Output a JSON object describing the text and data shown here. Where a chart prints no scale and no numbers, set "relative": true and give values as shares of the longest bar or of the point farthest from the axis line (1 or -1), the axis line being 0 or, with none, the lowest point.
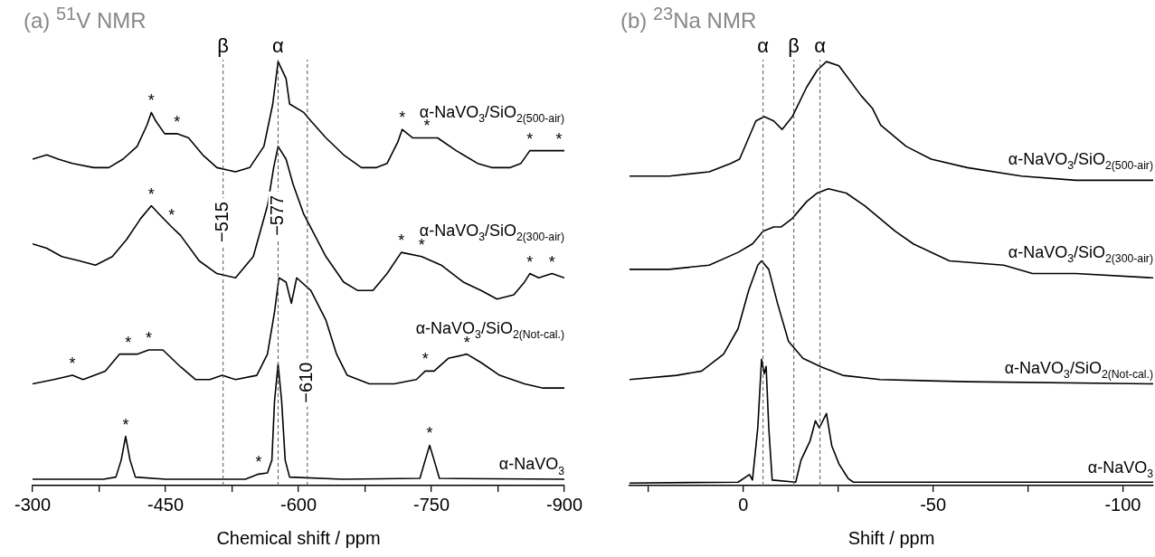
{
  "chart_data": [
    {
      "type": "line",
      "title": "(a) $^{51}$V NMR",
      "xlabel": "Chemical shift / ppm",
      "relative": true,
      "legend": false,
      "grid": false,
      "xlim": [
        -300,
        -900
      ],
      "xticks": [
        -300,
        {
          "value": -375,
          "label": null
        },
        -450,
        {
          "value": -525,
          "label": null
        },
        -600,
        {
          "value": -675,
          "label": null
        },
        -750,
        {
          "value": -825,
          "label": null
        },
        -900
      ],
      "series": [
        {
          "name": "α-NaVO$_{3}$/SiO$_{2(500-air)}$",
          "color": "#000000",
          "x": [
            -300,
            -316,
            -329,
            -345,
            -369,
            -386,
            -402,
            -418,
            -429,
            -434,
            -439,
            -449,
            -463,
            -476,
            -492,
            -508,
            -529,
            -545,
            -561,
            -571,
            -577,
            -586,
            -590,
            -606,
            -614,
            -631,
            -651,
            -671,
            -688,
            -700,
            -712,
            -717,
            -729,
            -745,
            -757,
            -778,
            -802,
            -818,
            -839,
            -851,
            -861,
            -871,
            -884,
            -894,
            -900
          ],
          "values": [
            0.77,
            0.78,
            0.77,
            0.76,
            0.75,
            0.75,
            0.77,
            0.8,
            0.85,
            0.88,
            0.86,
            0.83,
            0.83,
            0.82,
            0.78,
            0.75,
            0.74,
            0.75,
            0.8,
            0.9,
            1,
            0.96,
            0.9,
            0.88,
            0.86,
            0.82,
            0.78,
            0.75,
            0.75,
            0.76,
            0.81,
            0.84,
            0.82,
            0.82,
            0.82,
            0.79,
            0.76,
            0.75,
            0.75,
            0.76,
            0.79,
            0.79,
            0.79,
            0.79,
            0.79
          ]
        },
        {
          "name": "α-NaVO$_{3}$/SiO$_{2(300-air)}$",
          "color": "#000000",
          "x": [
            -300,
            -316,
            -333,
            -353,
            -371,
            -390,
            -406,
            -422,
            -434,
            -443,
            -457,
            -467,
            -488,
            -508,
            -529,
            -549,
            -565,
            -572,
            -577,
            -586,
            -594,
            -606,
            -631,
            -651,
            -667,
            -684,
            -700,
            -716,
            -739,
            -761,
            -786,
            -806,
            -824,
            -843,
            -855,
            -861,
            -871,
            -886,
            -900
          ],
          "values": [
            0.57,
            0.56,
            0.54,
            0.53,
            0.52,
            0.54,
            0.58,
            0.63,
            0.66,
            0.64,
            0.61,
            0.59,
            0.53,
            0.5,
            0.49,
            0.54,
            0.66,
            0.75,
            0.8,
            0.77,
            0.71,
            0.64,
            0.54,
            0.48,
            0.46,
            0.46,
            0.5,
            0.55,
            0.54,
            0.52,
            0.48,
            0.46,
            0.44,
            0.45,
            0.48,
            0.5,
            0.49,
            0.5,
            0.49
          ]
        },
        {
          "name": "α-NaVO$_{3}$/SiO$_{2(Not-cal.)}$",
          "color": "#000000",
          "x": [
            -300,
            -324,
            -345,
            -357,
            -382,
            -398,
            -408,
            -418,
            -431,
            -447,
            -467,
            -484,
            -500,
            -514,
            -529,
            -553,
            -565,
            -573,
            -578,
            -586,
            -592,
            -598,
            -614,
            -631,
            -643,
            -655,
            -680,
            -708,
            -733,
            -743,
            -753,
            -769,
            -790,
            -806,
            -827,
            -855,
            -876,
            -900
          ],
          "values": [
            0.24,
            0.25,
            0.26,
            0.25,
            0.27,
            0.31,
            0.31,
            0.31,
            0.32,
            0.32,
            0.28,
            0.25,
            0.25,
            0.26,
            0.25,
            0.26,
            0.31,
            0.41,
            0.49,
            0.48,
            0.43,
            0.49,
            0.46,
            0.39,
            0.31,
            0.26,
            0.24,
            0.24,
            0.25,
            0.27,
            0.27,
            0.3,
            0.31,
            0.29,
            0.26,
            0.24,
            0.23,
            0.23
          ]
        },
        {
          "name": "α-NaVO$_{3}$",
          "color": "#000000",
          "x": [
            -300,
            -380,
            -394,
            -400,
            -405,
            -410,
            -416,
            -450,
            -540,
            -555,
            -565,
            -570,
            -573,
            -577,
            -581,
            -585,
            -590,
            -650,
            -737,
            -743,
            -748,
            -753,
            -759,
            -900
          ],
          "values": [
            0.015,
            0.015,
            0.02,
            0.06,
            0.116,
            0.06,
            0.02,
            0.015,
            0.015,
            0.027,
            0.03,
            0.06,
            0.2,
            0.286,
            0.2,
            0.06,
            0.02,
            0.015,
            0.017,
            0.06,
            0.095,
            0.06,
            0.017,
            0.015
          ]
        }
      ],
      "ref_lines": [
        {
          "axis": "x",
          "value": -515,
          "label": "−515",
          "color": "#555555",
          "line_style": "dashed"
        },
        {
          "axis": "x",
          "value": -577,
          "label": "−577",
          "color": "#555555",
          "line_style": "dashed"
        },
        {
          "axis": "x",
          "value": -610,
          "label": "−610",
          "color": "#555555",
          "line_style": "dashed"
        }
      ],
      "annotations": [
        "β",
        "α",
        {
          "text": "*",
          "x": -434,
          "y": 0.88
        },
        {
          "text": "*",
          "x": -463,
          "y": 0.83
        },
        {
          "text": "*",
          "x": -717,
          "y": 0.84
        },
        {
          "text": "*",
          "x": -745,
          "y": 0.82
        },
        {
          "text": "*",
          "x": -861,
          "y": 0.79
        },
        {
          "text": "*",
          "x": -894,
          "y": 0.79
        },
        {
          "text": "*",
          "x": -434,
          "y": 0.66
        },
        {
          "text": "*",
          "x": -457,
          "y": 0.61
        },
        {
          "text": "*",
          "x": -716,
          "y": 0.55
        },
        {
          "text": "*",
          "x": -739,
          "y": 0.54
        },
        {
          "text": "*",
          "x": -861,
          "y": 0.5
        },
        {
          "text": "*",
          "x": -886,
          "y": 0.5
        },
        {
          "text": "*",
          "x": -345,
          "y": 0.26
        },
        {
          "text": "*",
          "x": -408,
          "y": 0.31
        },
        {
          "text": "*",
          "x": -431,
          "y": 0.32
        },
        {
          "text": "*",
          "x": -743,
          "y": 0.27
        },
        {
          "text": "*",
          "x": -790,
          "y": 0.31
        },
        {
          "text": "*",
          "x": -405,
          "y": 0.116
        },
        {
          "text": "*",
          "x": -555,
          "y": 0.027
        },
        {
          "text": "*",
          "x": -748,
          "y": 0.095
        }
      ]
    },
    {
      "type": "line",
      "title": "(b) $^{23}$Na NMR",
      "xlabel": "Shift / ppm",
      "relative": true,
      "legend": false,
      "grid": false,
      "xlim": [
        30,
        -108
      ],
      "xticks": [
        {
          "value": 25,
          "label": null
        },
        0,
        {
          "value": -25,
          "label": null
        },
        -50,
        {
          "value": -75,
          "label": null
        },
        -100
      ],
      "series": [
        {
          "name": "α-NaVO$_{3}$/SiO$_{2(500-air)}$",
          "color": "#000000",
          "x": [
            30,
            19.5,
            9,
            3.3,
            1,
            -1.4,
            -3.3,
            -5.5,
            -8,
            -10.2,
            -12.9,
            -16.7,
            -19.5,
            -21.9,
            -25.2,
            -31,
            -34,
            -36.2,
            -42.9,
            -49.5,
            -59,
            -73.3,
            -87.6,
            -108
          ],
          "values": [
            0.73,
            0.73,
            0.74,
            0.76,
            0.77,
            0.82,
            0.86,
            0.87,
            0.86,
            0.84,
            0.87,
            0.94,
            0.98,
            1,
            0.99,
            0.92,
            0.89,
            0.85,
            0.8,
            0.77,
            0.75,
            0.73,
            0.72,
            0.72
          ]
        },
        {
          "name": "α-NaVO$_{3}$/SiO$_{2(300-air)}$",
          "color": "#000000",
          "x": [
            30,
            19.5,
            9,
            1.4,
            -2.4,
            -5.2,
            -8,
            -10,
            -12.9,
            -16.7,
            -19.5,
            -22.4,
            -27.1,
            -32,
            -40,
            -44.8,
            -54.3,
            -68.6,
            -76.2,
            -87.6,
            -108
          ],
          "values": [
            0.51,
            0.51,
            0.52,
            0.55,
            0.57,
            0.6,
            0.61,
            0.61,
            0.63,
            0.67,
            0.69,
            0.7,
            0.69,
            0.66,
            0.6,
            0.57,
            0.53,
            0.52,
            0.5,
            0.5,
            0.49
          ]
        },
        {
          "name": "α-NaVO$_{3}$/SiO$_{2(Not-cal.)}$",
          "color": "#000000",
          "x": [
            30,
            17.6,
            11,
            5.2,
            1.4,
            -1.4,
            -3.8,
            -4.8,
            -6.7,
            -9,
            -11.9,
            -15.7,
            -20.5,
            -26.2,
            -36,
            -59,
            -108
          ],
          "values": [
            0.25,
            0.26,
            0.27,
            0.31,
            0.37,
            0.46,
            0.52,
            0.53,
            0.51,
            0.43,
            0.34,
            0.3,
            0.28,
            0.26,
            0.25,
            0.245,
            0.24
          ]
        },
        {
          "name": "α-NaVO$_{3}$",
          "color": "#000000",
          "x": [
            30,
            1.4,
            -1.6,
            -2.4,
            -3.8,
            -4.8,
            -5.5,
            -6,
            -6.7,
            -7.6,
            -13.8,
            -15.2,
            -17.6,
            -19,
            -20,
            -21.9,
            -23.3,
            -25.2,
            -27.6,
            -29,
            -108
          ],
          "values": [
            0.006,
            0.008,
            0.026,
            0.013,
            0.136,
            0.298,
            0.264,
            0.281,
            0.136,
            0.013,
            0.008,
            0.06,
            0.106,
            0.153,
            0.136,
            0.17,
            0.094,
            0.051,
            0.017,
            0.008,
            0.008
          ]
        }
      ],
      "ref_lines": [
        {
          "axis": "x",
          "value": -5.2,
          "color": "#555555",
          "line_style": "dashed"
        },
        {
          "axis": "x",
          "value": -13.3,
          "color": "#555555",
          "line_style": "dashed"
        },
        {
          "axis": "x",
          "value": -20.2,
          "color": "#555555",
          "line_style": "dashed"
        }
      ],
      "annotations": [
        "α",
        "β",
        "α"
      ]
    }
  ]
}
